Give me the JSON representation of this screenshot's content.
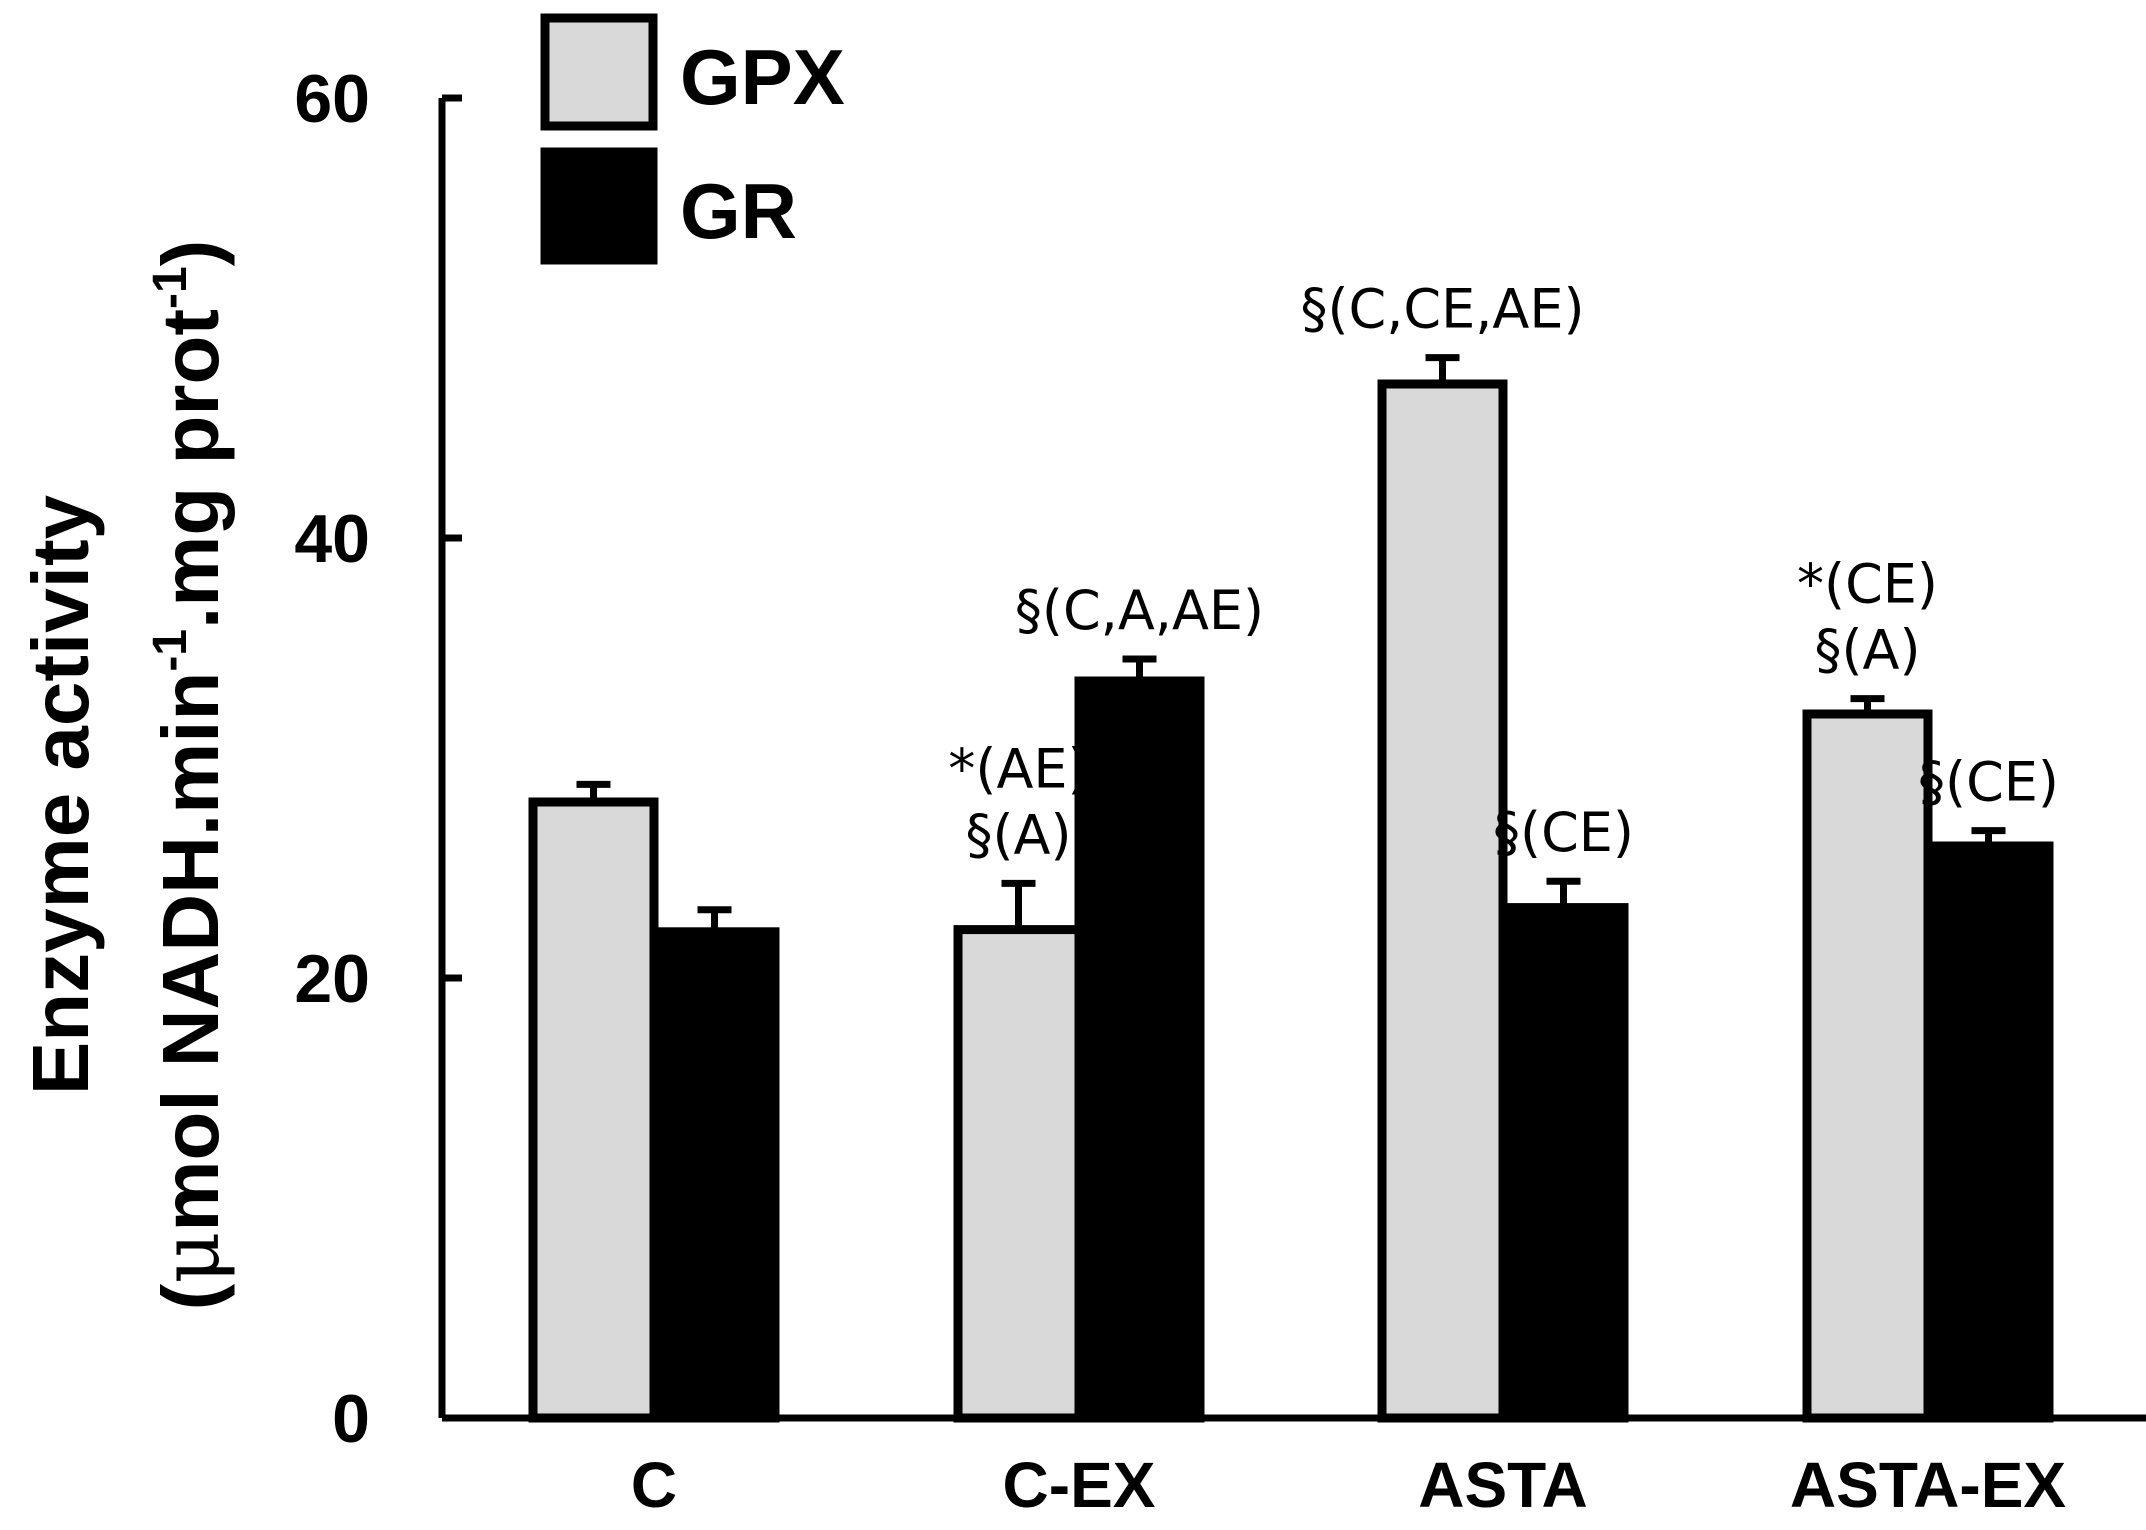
{
  "chart_data": {
    "type": "bar",
    "categories": [
      "C",
      "C-EX",
      "ASTA",
      "ASTA-EX"
    ],
    "series": [
      {
        "name": "GPX",
        "color": "#d9d9d9",
        "values": [
          28,
          22.2,
          47,
          32
        ],
        "errors": [
          0.8,
          2.1,
          1.2,
          0.7
        ]
      },
      {
        "name": "GR",
        "color": "#000000",
        "values": [
          22.1,
          33.5,
          23.2,
          26
        ],
        "errors": [
          1.0,
          1.0,
          1.2,
          0.7
        ]
      }
    ],
    "ylabel": "Enzyme activity",
    "ylabel_unit": {
      "open": "(",
      "mu": "μ",
      "unit_a": "mol NADH.min",
      "sup_a": "-1",
      "unit_b": ".mg prot",
      "sup_b": "-1",
      "close": ")"
    },
    "ylim": [
      0,
      60
    ],
    "yticks": [
      0,
      20,
      40,
      60
    ],
    "legend": {
      "position": "top-left"
    },
    "annotations": [
      {
        "category": "C-EX",
        "series": "GPX",
        "lines": [
          "*(AE)",
          "§(A)"
        ]
      },
      {
        "category": "C-EX",
        "series": "GR",
        "lines": [
          "§(C,A,AE)"
        ]
      },
      {
        "category": "ASTA",
        "series": "GPX",
        "lines": [
          "§(C,CE,AE)"
        ]
      },
      {
        "category": "ASTA",
        "series": "GR",
        "lines": [
          "§(CE)"
        ]
      },
      {
        "category": "ASTA-EX",
        "series": "GPX",
        "lines": [
          "*(CE)",
          "§(A)"
        ]
      },
      {
        "category": "ASTA-EX",
        "series": "GR",
        "lines": [
          "§(CE)"
        ]
      }
    ]
  }
}
